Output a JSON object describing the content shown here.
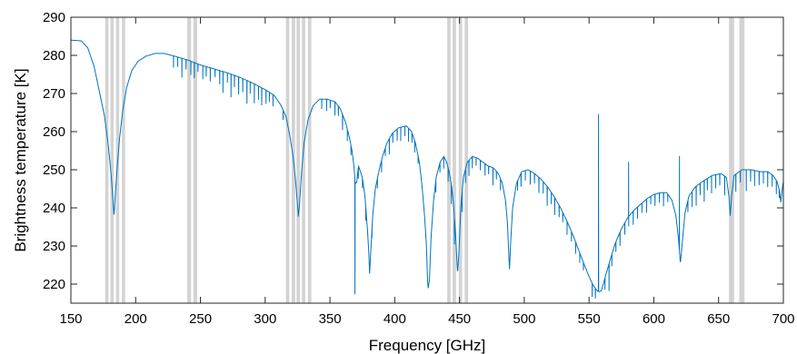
{
  "chart_data": {
    "type": "line",
    "xlabel": "Frequency [GHz]",
    "ylabel": "Brightness temperature [K]",
    "xlim": [
      150,
      700
    ],
    "ylim": [
      215,
      290
    ],
    "xticks": [
      150,
      200,
      250,
      300,
      350,
      400,
      450,
      500,
      550,
      600,
      650,
      700
    ],
    "yticks": [
      220,
      230,
      240,
      250,
      260,
      270,
      280,
      290
    ],
    "grid": false,
    "colors": {
      "line": "#0072bd",
      "bands": "#d3d3d3",
      "axes": "#262626"
    },
    "shaded_bands": [
      [
        176.5,
        179.0
      ],
      [
        180.5,
        183.0
      ],
      [
        184.8,
        187.3
      ],
      [
        189.4,
        191.9
      ],
      [
        239.8,
        242.8
      ],
      [
        244.5,
        247.5
      ],
      [
        316.0,
        318.6
      ],
      [
        320.5,
        323.1
      ],
      [
        324.2,
        326.8
      ],
      [
        328.3,
        330.9
      ],
      [
        333.0,
        335.6
      ],
      [
        440.5,
        443.1
      ],
      [
        444.7,
        447.3
      ],
      [
        449.4,
        452.0
      ],
      [
        454.0,
        456.6
      ],
      [
        658.0,
        662.0
      ],
      [
        666.0,
        670.0
      ]
    ],
    "baseline_points": [
      [
        150,
        284.0
      ],
      [
        158,
        283.8
      ],
      [
        163,
        282.0
      ],
      [
        168,
        277.0
      ],
      [
        172,
        270.5
      ],
      [
        176,
        264.0
      ],
      [
        179,
        256.0
      ],
      [
        181,
        249.0
      ],
      [
        182.5,
        242.0
      ],
      [
        183.3,
        237.8
      ],
      [
        184,
        242.0
      ],
      [
        185.5,
        249.5
      ],
      [
        187.5,
        258.0
      ],
      [
        190,
        265.5
      ],
      [
        193,
        271.5
      ],
      [
        197,
        276.0
      ],
      [
        202,
        278.5
      ],
      [
        208,
        279.8
      ],
      [
        215,
        280.5
      ],
      [
        222,
        280.5
      ],
      [
        230,
        279.8
      ],
      [
        240,
        278.8
      ],
      [
        250,
        277.5
      ],
      [
        260,
        276.5
      ],
      [
        270,
        275.5
      ],
      [
        280,
        274.3
      ],
      [
        290,
        272.8
      ],
      [
        300,
        271.0
      ],
      [
        307,
        269.5
      ],
      [
        312,
        267.0
      ],
      [
        316,
        264.0
      ],
      [
        319,
        259.0
      ],
      [
        321.5,
        253.5
      ],
      [
        323.5,
        247.0
      ],
      [
        325,
        240.5
      ],
      [
        325.6,
        237.8
      ],
      [
        326.5,
        241.0
      ],
      [
        328,
        249.0
      ],
      [
        330,
        257.0
      ],
      [
        333,
        263.0
      ],
      [
        337,
        266.8
      ],
      [
        342,
        268.5
      ],
      [
        348,
        268.5
      ],
      [
        354,
        267.8
      ],
      [
        358,
        266.0
      ],
      [
        362,
        262.5
      ],
      [
        365,
        258.5
      ],
      [
        367,
        255.0
      ],
      [
        368.5,
        251.0
      ],
      [
        369.5,
        246.5
      ],
      [
        370.5,
        246.5
      ],
      [
        372,
        251.0
      ],
      [
        375,
        248.0
      ],
      [
        377,
        243.0
      ],
      [
        379,
        234.0
      ],
      [
        380,
        228.0
      ],
      [
        380.6,
        222.8
      ],
      [
        381.5,
        228.5
      ],
      [
        383,
        238.0
      ],
      [
        385,
        245.0
      ],
      [
        388,
        250.0
      ],
      [
        391,
        254.0
      ],
      [
        394,
        257.0
      ],
      [
        398,
        259.5
      ],
      [
        403,
        261.0
      ],
      [
        409,
        261.5
      ],
      [
        413,
        260.0
      ],
      [
        416,
        257.0
      ],
      [
        419,
        252.0
      ],
      [
        421,
        246.0
      ],
      [
        423,
        238.0
      ],
      [
        424.5,
        230.0
      ],
      [
        425.3,
        221.0
      ],
      [
        425.8,
        219.0
      ],
      [
        426.8,
        221.0
      ],
      [
        428,
        232.0
      ],
      [
        430,
        242.0
      ],
      [
        432,
        248.0
      ],
      [
        435,
        252.0
      ],
      [
        438,
        253.5
      ],
      [
        440,
        252.0
      ],
      [
        442,
        249.5
      ],
      [
        444,
        245.5
      ],
      [
        445.5,
        240.5
      ],
      [
        447,
        233.0
      ],
      [
        448,
        226.0
      ],
      [
        448.5,
        223.0
      ],
      [
        449.5,
        228.0
      ],
      [
        451,
        240.0
      ],
      [
        453,
        248.0
      ],
      [
        456,
        252.0
      ],
      [
        460,
        253.5
      ],
      [
        464,
        253.0
      ],
      [
        468,
        252.0
      ],
      [
        472,
        251.0
      ],
      [
        476,
        250.5
      ],
      [
        480,
        249.0
      ],
      [
        483,
        246.5
      ],
      [
        485.5,
        242.0
      ],
      [
        487,
        236.0
      ],
      [
        488,
        228.0
      ],
      [
        488.6,
        224.0
      ],
      [
        489.5,
        231.0
      ],
      [
        491,
        240.0
      ],
      [
        494,
        246.5
      ],
      [
        498,
        249.5
      ],
      [
        503,
        250.0
      ],
      [
        508,
        249.0
      ],
      [
        513,
        247.5
      ],
      [
        518,
        245.5
      ],
      [
        523,
        243.0
      ],
      [
        528,
        240.0
      ],
      [
        533,
        236.5
      ],
      [
        538,
        232.5
      ],
      [
        543,
        228.0
      ],
      [
        547,
        224.5
      ],
      [
        550,
        222.0
      ],
      [
        553,
        219.8
      ],
      [
        555,
        218.8
      ],
      [
        556.5,
        218.2
      ],
      [
        558,
        218.0
      ],
      [
        559.5,
        218.3
      ],
      [
        561,
        220.0
      ],
      [
        563,
        222.5
      ],
      [
        566,
        226.0
      ],
      [
        570,
        230.5
      ],
      [
        575,
        234.5
      ],
      [
        580,
        237.5
      ],
      [
        585,
        239.5
      ],
      [
        590,
        241.0
      ],
      [
        595,
        242.5
      ],
      [
        600,
        243.5
      ],
      [
        605,
        244.0
      ],
      [
        610,
        244.0
      ],
      [
        614,
        242.0
      ],
      [
        617,
        238.0
      ],
      [
        619,
        232.0
      ],
      [
        620.5,
        225.5
      ],
      [
        622,
        231.0
      ],
      [
        624,
        238.5
      ],
      [
        627,
        243.0
      ],
      [
        632,
        245.5
      ],
      [
        638,
        247.0
      ],
      [
        645,
        248.5
      ],
      [
        652,
        249.0
      ],
      [
        656,
        248.0
      ],
      [
        658,
        243.0
      ],
      [
        659,
        238.0
      ],
      [
        660,
        243.0
      ],
      [
        662,
        248.5
      ],
      [
        668,
        250.0
      ],
      [
        675,
        250.0
      ],
      [
        682,
        249.5
      ],
      [
        688,
        249.5
      ],
      [
        692,
        248.5
      ],
      [
        695,
        247.0
      ],
      [
        697,
        244.5
      ],
      [
        698,
        241.5
      ],
      [
        699,
        244.5
      ],
      [
        700,
        247.0
      ]
    ],
    "narrow_absorption_lines": [
      [
        229.2,
        3.0
      ],
      [
        232.4,
        2.5
      ],
      [
        235.7,
        5.0
      ],
      [
        238.9,
        2.5
      ],
      [
        242.6,
        3.5
      ],
      [
        245.3,
        4.0
      ],
      [
        248.1,
        2.0
      ],
      [
        251.8,
        3.5
      ],
      [
        254.5,
        2.5
      ],
      [
        257.6,
        3.5
      ],
      [
        261.3,
        2.0
      ],
      [
        264.9,
        3.5
      ],
      [
        267.4,
        5.5
      ],
      [
        270.8,
        2.5
      ],
      [
        273.6,
        6.0
      ],
      [
        276.3,
        3.0
      ],
      [
        279.5,
        4.5
      ],
      [
        282.7,
        3.5
      ],
      [
        285.9,
        6.0
      ],
      [
        288.4,
        3.0
      ],
      [
        291.6,
        5.0
      ],
      [
        294.8,
        3.5
      ],
      [
        297.3,
        4.5
      ],
      [
        300.6,
        3.5
      ],
      [
        303.2,
        2.5
      ],
      [
        306.0,
        3.0
      ],
      [
        313.8,
        2.5
      ],
      [
        343.6,
        2.5
      ],
      [
        347.4,
        3.0
      ],
      [
        350.2,
        2.0
      ],
      [
        353.8,
        3.5
      ],
      [
        356.5,
        2.5
      ],
      [
        359.7,
        4.0
      ],
      [
        363.4,
        3.0
      ],
      [
        366.2,
        2.5
      ],
      [
        369.3,
        30.0
      ],
      [
        371.9,
        3.0
      ],
      [
        375.1,
        2.5
      ],
      [
        377.6,
        3.5
      ],
      [
        382.4,
        2.0
      ],
      [
        386.6,
        2.5
      ],
      [
        389.8,
        3.0
      ],
      [
        392.7,
        2.0
      ],
      [
        395.8,
        4.0
      ],
      [
        398.5,
        2.5
      ],
      [
        401.9,
        3.0
      ],
      [
        404.6,
        3.5
      ],
      [
        407.8,
        2.5
      ],
      [
        410.6,
        3.5
      ],
      [
        413.3,
        2.5
      ],
      [
        415.4,
        3.0
      ],
      [
        418.0,
        2.0
      ],
      [
        431.7,
        3.0
      ],
      [
        434.9,
        2.5
      ],
      [
        437.8,
        3.0
      ],
      [
        441.2,
        3.5
      ],
      [
        443.7,
        5.0
      ],
      [
        446.1,
        7.0
      ],
      [
        452.0,
        5.0
      ],
      [
        454.6,
        3.5
      ],
      [
        457.3,
        4.0
      ],
      [
        459.9,
        3.0
      ],
      [
        462.8,
        2.0
      ],
      [
        466.1,
        2.5
      ],
      [
        469.7,
        3.0
      ],
      [
        472.5,
        2.0
      ],
      [
        475.8,
        4.5
      ],
      [
        478.5,
        2.0
      ],
      [
        481.6,
        3.0
      ],
      [
        494.8,
        2.5
      ],
      [
        497.5,
        3.5
      ],
      [
        500.8,
        2.5
      ],
      [
        504.6,
        3.5
      ],
      [
        507.9,
        2.5
      ],
      [
        511.3,
        4.0
      ],
      [
        514.6,
        3.0
      ],
      [
        517.7,
        5.0
      ],
      [
        520.8,
        3.0
      ],
      [
        523.5,
        4.5
      ],
      [
        526.9,
        3.0
      ],
      [
        529.7,
        2.5
      ],
      [
        533.0,
        3.5
      ],
      [
        536.4,
        2.5
      ],
      [
        539.6,
        3.0
      ],
      [
        542.8,
        2.5
      ],
      [
        545.6,
        2.0
      ],
      [
        552.4,
        3.5
      ],
      [
        554.9,
        2.5
      ],
      [
        562.3,
        3.0
      ],
      [
        565.4,
        7.0
      ],
      [
        567.6,
        3.0
      ],
      [
        570.7,
        2.5
      ],
      [
        573.9,
        3.5
      ],
      [
        577.6,
        3.0
      ],
      [
        580.6,
        2.5
      ],
      [
        584.1,
        3.5
      ],
      [
        587.4,
        3.0
      ],
      [
        590.8,
        2.5
      ],
      [
        594.4,
        3.5
      ],
      [
        597.6,
        2.0
      ],
      [
        600.9,
        3.0
      ],
      [
        604.3,
        2.5
      ],
      [
        607.5,
        3.5
      ],
      [
        610.8,
        2.0
      ],
      [
        626.3,
        3.0
      ],
      [
        629.6,
        4.0
      ],
      [
        632.7,
        5.0
      ],
      [
        635.8,
        3.0
      ],
      [
        638.9,
        5.5
      ],
      [
        641.3,
        3.0
      ],
      [
        644.6,
        4.5
      ],
      [
        647.8,
        3.5
      ],
      [
        650.9,
        3.0
      ],
      [
        654.7,
        5.0
      ],
      [
        663.3,
        4.5
      ],
      [
        666.8,
        3.0
      ],
      [
        671.4,
        5.5
      ],
      [
        674.7,
        3.0
      ],
      [
        677.8,
        4.0
      ],
      [
        681.3,
        3.5
      ],
      [
        684.6,
        3.0
      ],
      [
        687.9,
        4.0
      ],
      [
        691.4,
        3.0
      ],
      [
        694.6,
        3.5
      ],
      [
        696.8,
        2.0
      ]
    ],
    "emission_spikes": [
      [
        557.3,
        264.5
      ],
      [
        580.5,
        252.0
      ],
      [
        619.8,
        253.5
      ]
    ]
  }
}
